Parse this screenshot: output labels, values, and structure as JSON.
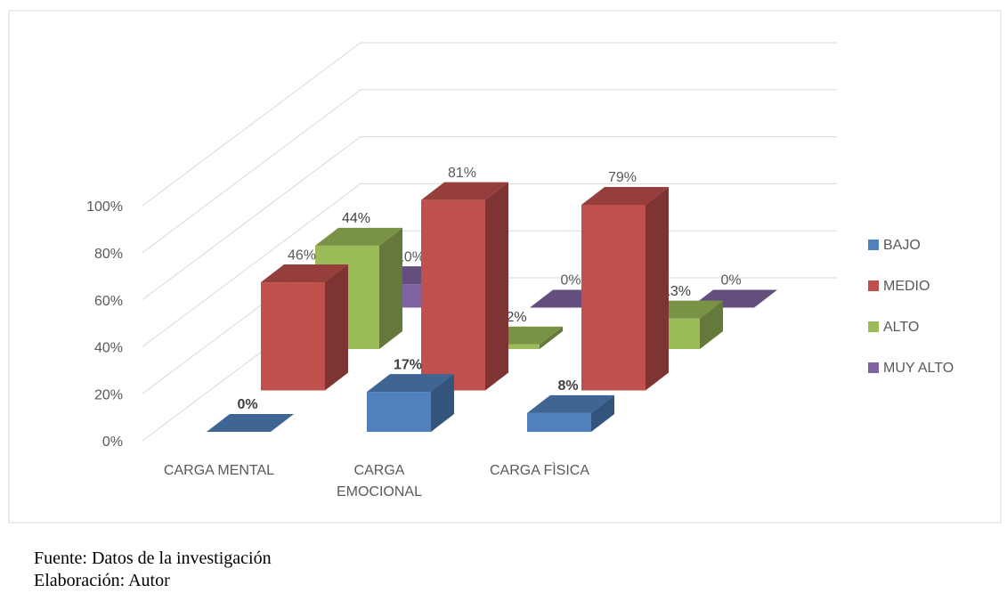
{
  "chart_data": {
    "type": "bar3d",
    "categories": [
      "CARGA MENTAL",
      "CARGA EMOCIONAL",
      "CARGA FÌSICA"
    ],
    "series": [
      {
        "name": "BAJO",
        "color": "#4f81bd",
        "values": [
          0,
          17,
          8
        ],
        "value_labels": [
          "0%",
          "17%",
          "8%"
        ]
      },
      {
        "name": "MEDIO",
        "color": "#c0504d",
        "values": [
          46,
          81,
          79
        ],
        "value_labels": [
          "46%",
          "81%",
          "79%"
        ]
      },
      {
        "name": "ALTO",
        "color": "#9bbb59",
        "values": [
          44,
          2,
          13
        ],
        "value_labels": [
          "44%",
          "2%",
          "13%"
        ]
      },
      {
        "name": "MUY ALTO",
        "color": "#8064a2",
        "values": [
          10,
          0,
          0
        ],
        "value_labels": [
          "10%",
          "0%",
          "0%"
        ]
      }
    ],
    "ylim": [
      0,
      100
    ],
    "yticks": [
      {
        "value": 0,
        "label": "0%"
      },
      {
        "value": 20,
        "label": "20%"
      },
      {
        "value": 40,
        "label": "40%"
      },
      {
        "value": 60,
        "label": "60%"
      },
      {
        "value": 80,
        "label": "80%"
      },
      {
        "value": 100,
        "label": "100%"
      }
    ],
    "grid": true,
    "legend": "right",
    "source": "Fuente: Datos de la investigación",
    "author": "Elaboración: Autor"
  }
}
